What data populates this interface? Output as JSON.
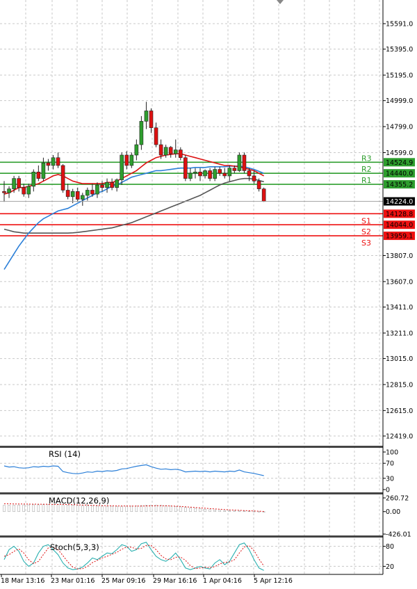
{
  "chart_data": [
    {
      "type": "candlestick",
      "panel": "price",
      "colors": {
        "up": "#2e9e2e",
        "down": "#dd1111",
        "resistance": "#2e9e2e",
        "support": "#ee1111",
        "ma_fast": "#dd1111",
        "ma_mid": "#2b7fd8",
        "ma_slow": "#555555"
      },
      "y_ticks": [
        "15591.0",
        "15395.0",
        "15195.0",
        "14999.0",
        "14799.0",
        "14599.0",
        "13807.0",
        "13607.0",
        "13411.0",
        "13211.0",
        "13015.0",
        "12815.0",
        "12615.0",
        "12419.0"
      ],
      "x_ticks": [
        "18 Mar 13:16",
        "23 Mar 01:16",
        "25 Mar 09:16",
        "29 Mar 16:16",
        "1 Apr 04:16",
        "5 Apr 12:16"
      ],
      "current_price": "14224.0",
      "levels": [
        {
          "name": "R3",
          "value": "14524.9",
          "kind": "resistance"
        },
        {
          "name": "R2",
          "value": "14440.0",
          "kind": "resistance"
        },
        {
          "name": "R1",
          "value": "14355.2",
          "kind": "resistance"
        },
        {
          "name": "S1",
          "value": "14128.8",
          "kind": "support"
        },
        {
          "name": "S2",
          "value": "14044.0",
          "kind": "support"
        },
        {
          "name": "S3",
          "value": "13959.1",
          "kind": "support"
        }
      ],
      "candles": [
        [
          14300,
          14380,
          14220,
          14290
        ],
        [
          14290,
          14340,
          14250,
          14320
        ],
        [
          14320,
          14420,
          14290,
          14400
        ],
        [
          14400,
          14420,
          14300,
          14330
        ],
        [
          14330,
          14360,
          14260,
          14280
        ],
        [
          14280,
          14360,
          14250,
          14340
        ],
        [
          14340,
          14470,
          14300,
          14450
        ],
        [
          14450,
          14500,
          14380,
          14400
        ],
        [
          14400,
          14560,
          14380,
          14520
        ],
        [
          14520,
          14550,
          14460,
          14500
        ],
        [
          14500,
          14580,
          14470,
          14560
        ],
        [
          14560,
          14600,
          14480,
          14500
        ],
        [
          14500,
          14510,
          14290,
          14310
        ],
        [
          14310,
          14360,
          14240,
          14260
        ],
        [
          14260,
          14320,
          14210,
          14300
        ],
        [
          14300,
          14330,
          14220,
          14240
        ],
        [
          14240,
          14290,
          14190,
          14270
        ],
        [
          14270,
          14330,
          14230,
          14310
        ],
        [
          14310,
          14360,
          14260,
          14280
        ],
        [
          14280,
          14370,
          14250,
          14350
        ],
        [
          14350,
          14380,
          14300,
          14330
        ],
        [
          14330,
          14400,
          14290,
          14370
        ],
        [
          14370,
          14400,
          14310,
          14330
        ],
        [
          14330,
          14400,
          14300,
          14390
        ],
        [
          14390,
          14600,
          14350,
          14580
        ],
        [
          14580,
          14610,
          14470,
          14500
        ],
        [
          14500,
          14600,
          14480,
          14580
        ],
        [
          14580,
          14700,
          14540,
          14660
        ],
        [
          14660,
          14880,
          14620,
          14840
        ],
        [
          14840,
          14990,
          14780,
          14920
        ],
        [
          14920,
          14940,
          14750,
          14790
        ],
        [
          14790,
          14830,
          14640,
          14660
        ],
        [
          14660,
          14700,
          14550,
          14580
        ],
        [
          14580,
          14660,
          14560,
          14640
        ],
        [
          14640,
          14650,
          14560,
          14590
        ],
        [
          14590,
          14700,
          14560,
          14620
        ],
        [
          14620,
          14640,
          14540,
          14560
        ],
        [
          14560,
          14580,
          14380,
          14400
        ],
        [
          14400,
          14480,
          14380,
          14440
        ],
        [
          14440,
          14480,
          14400,
          14450
        ],
        [
          14450,
          14480,
          14380,
          14420
        ],
        [
          14420,
          14470,
          14400,
          14460
        ],
        [
          14460,
          14480,
          14380,
          14400
        ],
        [
          14400,
          14490,
          14380,
          14470
        ],
        [
          14470,
          14490,
          14420,
          14440
        ],
        [
          14440,
          14480,
          14400,
          14420
        ],
        [
          14420,
          14500,
          14380,
          14480
        ],
        [
          14480,
          14500,
          14440,
          14460
        ],
        [
          14460,
          14600,
          14450,
          14580
        ],
        [
          14580,
          14600,
          14440,
          14460
        ],
        [
          14460,
          14480,
          14380,
          14420
        ],
        [
          14420,
          14460,
          14360,
          14380
        ],
        [
          14380,
          14400,
          14300,
          14320
        ],
        [
          14320,
          14330,
          14220,
          14224
        ]
      ],
      "ma_fast": [
        14280,
        14290,
        14310,
        14330,
        14330,
        14340,
        14350,
        14360,
        14380,
        14400,
        14420,
        14430,
        14420,
        14400,
        14380,
        14370,
        14360,
        14360,
        14360,
        14360,
        14360,
        14370,
        14370,
        14380,
        14400,
        14420,
        14440,
        14460,
        14490,
        14520,
        14540,
        14560,
        14570,
        14580,
        14585,
        14590,
        14590,
        14580,
        14570,
        14560,
        14550,
        14540,
        14530,
        14520,
        14510,
        14500,
        14500,
        14495,
        14490,
        14480,
        14470,
        14460,
        14440,
        14420
      ],
      "ma_mid": [
        13700,
        13760,
        13820,
        13880,
        13930,
        13980,
        14020,
        14060,
        14090,
        14110,
        14130,
        14150,
        14160,
        14170,
        14190,
        14210,
        14230,
        14250,
        14270,
        14290,
        14300,
        14320,
        14340,
        14350,
        14370,
        14390,
        14410,
        14420,
        14430,
        14440,
        14450,
        14460,
        14460,
        14465,
        14470,
        14475,
        14480,
        14480,
        14480,
        14485,
        14485,
        14485,
        14490,
        14490,
        14490,
        14490,
        14495,
        14495,
        14495,
        14490,
        14480,
        14470,
        14455,
        14440
      ],
      "ma_slow": [
        14010,
        14000,
        13990,
        13985,
        13980,
        13980,
        13980,
        13980,
        13980,
        13980,
        13980,
        13980,
        13980,
        13980,
        13982,
        13985,
        13990,
        13995,
        14000,
        14005,
        14010,
        14015,
        14020,
        14030,
        14040,
        14050,
        14060,
        14075,
        14090,
        14105,
        14120,
        14135,
        14150,
        14165,
        14180,
        14195,
        14210,
        14225,
        14240,
        14255,
        14270,
        14290,
        14310,
        14330,
        14350,
        14365,
        14375,
        14385,
        14395,
        14400,
        14400,
        14395,
        14385,
        14375
      ]
    },
    {
      "type": "line",
      "panel": "rsi",
      "title": "RSI (14)",
      "y_ticks": [
        "100",
        "70",
        "30",
        "0"
      ],
      "ylim": [
        0,
        100
      ],
      "values": [
        63,
        60,
        61,
        58,
        57,
        58,
        61,
        60,
        62,
        61,
        63,
        62,
        48,
        45,
        43,
        42,
        44,
        47,
        46,
        49,
        48,
        50,
        49,
        51,
        55,
        56,
        59,
        62,
        64,
        66,
        61,
        57,
        54,
        55,
        53,
        54,
        52,
        47,
        48,
        49,
        48,
        49,
        47,
        49,
        48,
        47,
        49,
        48,
        52,
        47,
        45,
        43,
        40,
        37
      ]
    },
    {
      "type": "line",
      "panel": "macd",
      "title": "MACD(12,26,9)",
      "y_ticks": [
        "260.72",
        "0.00",
        "-426.01"
      ],
      "ylim": [
        -426.01,
        260.72
      ],
      "histogram": [
        120,
        122,
        125,
        126,
        128,
        128,
        130,
        130,
        132,
        132,
        134,
        133,
        130,
        126,
        122,
        118,
        114,
        110,
        108,
        106,
        104,
        103,
        102,
        101,
        102,
        103,
        104,
        108,
        114,
        120,
        124,
        124,
        120,
        114,
        106,
        98,
        90,
        80,
        70,
        62,
        54,
        46,
        38,
        32,
        26,
        20,
        16,
        14,
        14,
        12,
        8,
        2,
        -6,
        -14
      ],
      "signal": [
        150,
        148,
        146,
        145,
        144,
        143,
        142,
        141,
        140,
        139,
        138,
        137,
        136,
        134,
        132,
        129,
        126,
        123,
        120,
        117,
        114,
        112,
        110,
        108,
        107,
        106,
        105,
        105,
        106,
        108,
        110,
        112,
        112,
        110,
        107,
        103,
        98,
        92,
        86,
        79,
        72,
        65,
        58,
        52,
        46,
        40,
        34,
        29,
        25,
        21,
        17,
        13,
        8,
        3
      ]
    },
    {
      "type": "line",
      "panel": "stoch",
      "title": "Stoch(5,3,3)",
      "y_ticks": [
        "80",
        "20"
      ],
      "ylim": [
        0,
        100
      ],
      "k": [
        40,
        70,
        80,
        65,
        35,
        20,
        30,
        60,
        80,
        85,
        70,
        55,
        30,
        15,
        10,
        12,
        18,
        30,
        45,
        40,
        50,
        60,
        58,
        70,
        85,
        80,
        65,
        70,
        88,
        92,
        70,
        50,
        40,
        35,
        45,
        60,
        40,
        15,
        10,
        15,
        20,
        15,
        12,
        30,
        40,
        25,
        35,
        60,
        85,
        90,
        70,
        40,
        15,
        8
      ],
      "d": [
        50,
        55,
        65,
        72,
        60,
        40,
        28,
        35,
        55,
        75,
        78,
        70,
        52,
        33,
        18,
        12,
        13,
        20,
        31,
        38,
        45,
        50,
        56,
        62,
        71,
        78,
        77,
        72,
        74,
        83,
        83,
        70,
        53,
        42,
        40,
        47,
        48,
        38,
        22,
        13,
        15,
        17,
        16,
        19,
        27,
        32,
        33,
        40,
        60,
        78,
        82,
        67,
        42,
        21
      ]
    }
  ]
}
